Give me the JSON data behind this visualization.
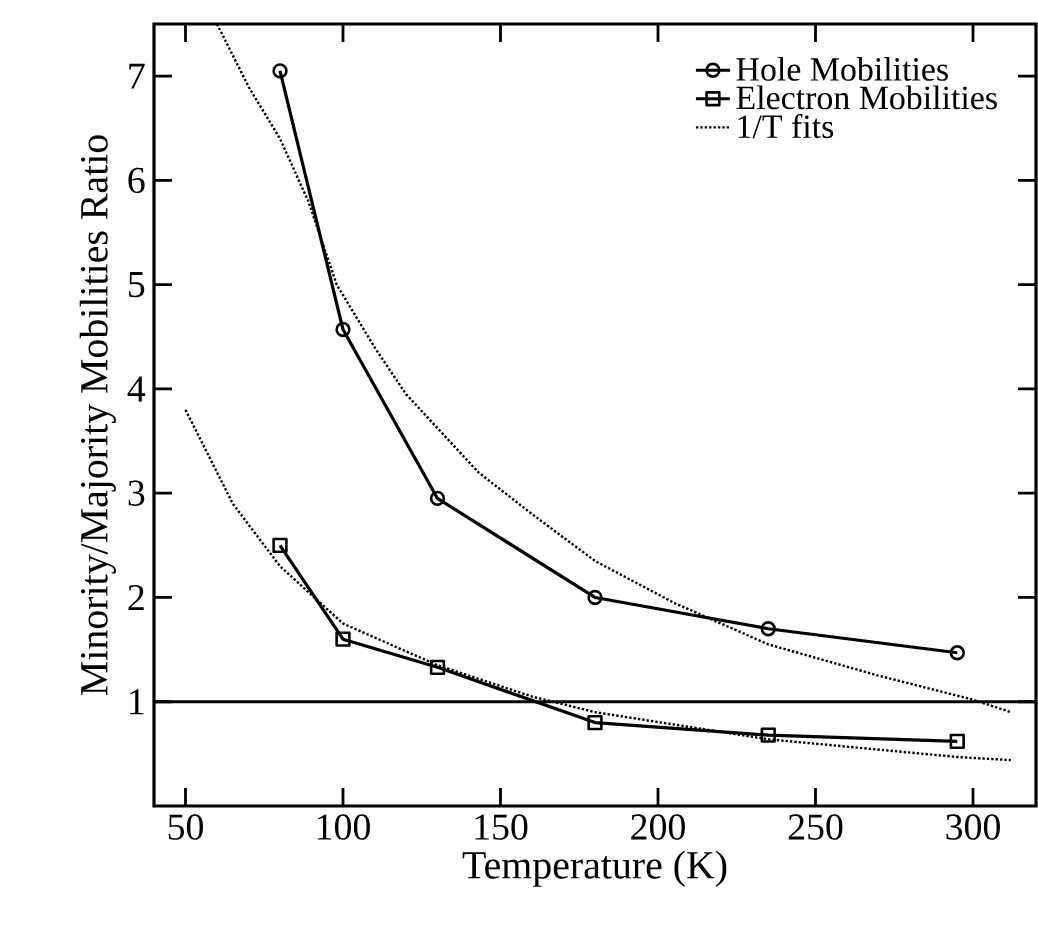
{
  "chart_data": {
    "type": "line",
    "xlabel": "Temperature (K)",
    "ylabel": "Minority/Majority Mobilities Ratio",
    "xlim": [
      40,
      320
    ],
    "ylim": [
      0,
      7.5
    ],
    "xticks": [
      50,
      100,
      150,
      200,
      250,
      300
    ],
    "yticks": [
      1,
      2,
      3,
      4,
      5,
      6,
      7
    ],
    "legend": "top right",
    "grid": false,
    "series": [
      {
        "name": "Hole Mobilities",
        "color": "#000000",
        "marker": "circle",
        "line_style": "solid",
        "x": [
          80,
          100,
          130,
          180,
          235,
          295
        ],
        "values": [
          7.05,
          4.57,
          2.95,
          2.0,
          1.7,
          1.47
        ]
      },
      {
        "name": "Electron Mobilities",
        "color": "#000000",
        "marker": "square",
        "line_style": "solid",
        "x": [
          80,
          100,
          130,
          180,
          235,
          295
        ],
        "values": [
          2.5,
          1.6,
          1.33,
          0.8,
          0.68,
          0.62
        ]
      },
      {
        "name": "1/T fits",
        "color": "#000000",
        "marker": "none",
        "line_style": "dotted",
        "x": [
          60,
          70,
          80,
          89,
          98,
          110,
          120,
          143,
          160,
          180,
          205,
          235,
          270,
          300,
          312
        ],
        "values": [
          7.5,
          6.9,
          6.4,
          5.8,
          5.0,
          4.4,
          3.95,
          3.2,
          2.8,
          2.35,
          1.95,
          1.55,
          1.25,
          1.02,
          0.9
        ]
      },
      {
        "color": "#000000",
        "marker": "none",
        "line_style": "dotted",
        "x": [
          50,
          65,
          80,
          100,
          130,
          160,
          180,
          235,
          295,
          312
        ],
        "values": [
          3.8,
          2.9,
          2.3,
          1.75,
          1.35,
          1.05,
          0.9,
          0.64,
          0.47,
          0.44
        ]
      }
    ],
    "ref_lines": [
      {
        "axis": "y",
        "value": 1,
        "color": "#000000",
        "line_style": "solid"
      }
    ]
  }
}
